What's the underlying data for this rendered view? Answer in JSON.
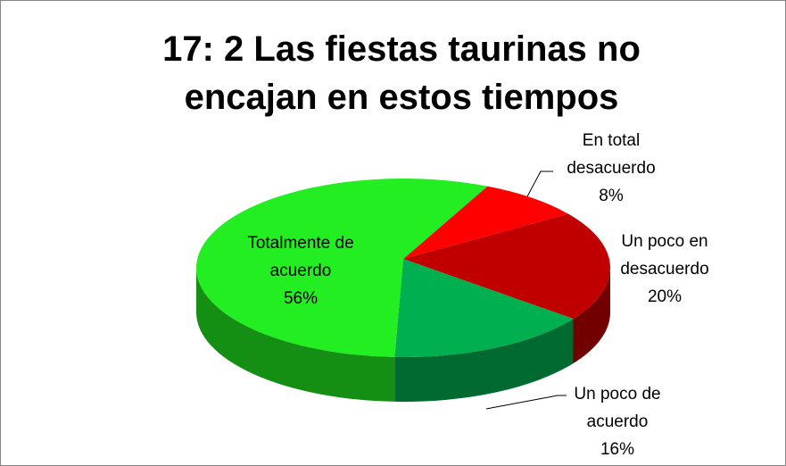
{
  "chart_data": {
    "type": "pie",
    "title": "17: 2 Las fiestas taurinas no encajan en estos tiempos",
    "categories": [
      "En total desacuerdo",
      "Un poco en desacuerdo",
      "Un poco de acuerdo",
      "Totalmente de acuerdo"
    ],
    "values": [
      8,
      20,
      16,
      56
    ],
    "value_labels": [
      "8%",
      "20%",
      "16%",
      "56%"
    ],
    "colors": [
      "#ff0000",
      "#c00000",
      "#00b050",
      "#22ee22"
    ]
  }
}
